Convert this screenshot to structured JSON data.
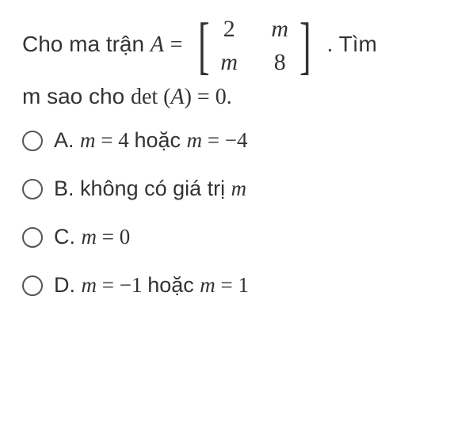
{
  "question": {
    "lead": "Cho ma trận ",
    "var": "A",
    "equals": " = ",
    "matrix": {
      "r1c1": "2",
      "r1c2": "m",
      "r2c1": "m",
      "r2c2": "8"
    },
    "after_matrix": ". Tìm",
    "line2_pre": "m sao cho ",
    "det_word": "det",
    "det_arg_open": " (",
    "det_arg_var": "A",
    "det_arg_close": ") = 0.",
    "line2_full_tail": ""
  },
  "options": {
    "A": {
      "label": "A. ",
      "text_parts": [
        {
          "t": "m",
          "cls": "math-i"
        },
        {
          "t": " = 4 ",
          "cls": "math"
        },
        {
          "t": "hoặc ",
          "cls": ""
        },
        {
          "t": "m",
          "cls": "math-i"
        },
        {
          "t": " = −4",
          "cls": "math"
        }
      ]
    },
    "B": {
      "label": "B. ",
      "text_parts": [
        {
          "t": "không có giá trị ",
          "cls": ""
        },
        {
          "t": "m",
          "cls": "math-i"
        }
      ]
    },
    "C": {
      "label": "C. ",
      "text_parts": [
        {
          "t": "m",
          "cls": "math-i"
        },
        {
          "t": " = 0",
          "cls": "math"
        }
      ]
    },
    "D": {
      "label": "D. ",
      "text_parts": [
        {
          "t": "m",
          "cls": "math-i"
        },
        {
          "t": " = −1 ",
          "cls": "math"
        },
        {
          "t": "hoặc ",
          "cls": ""
        },
        {
          "t": "m",
          "cls": "math-i"
        },
        {
          "t": " = 1",
          "cls": "math"
        }
      ]
    }
  }
}
